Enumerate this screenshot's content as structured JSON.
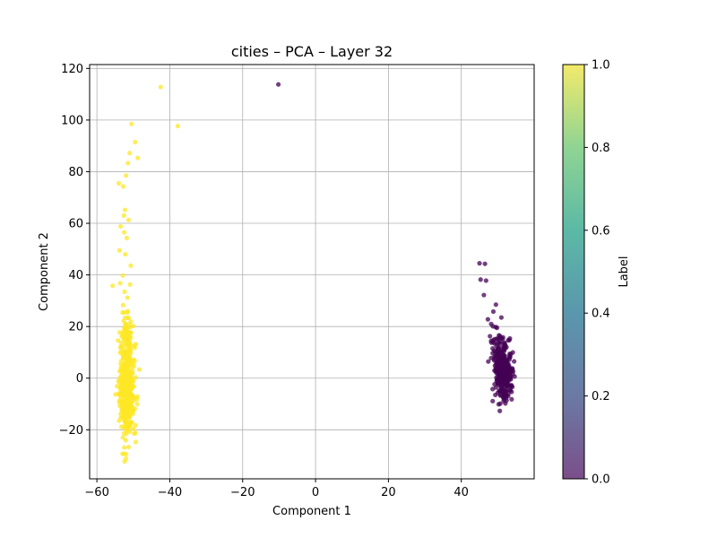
{
  "chart_data": {
    "type": "scatter",
    "title": "cities – PCA – Layer 32",
    "xlabel": "Component 1",
    "ylabel": "Component 2",
    "xlim": [
      -62,
      60
    ],
    "ylim": [
      -39,
      121.5
    ],
    "xticks": [
      -60,
      -40,
      -20,
      0,
      20,
      40
    ],
    "yticks": [
      -20,
      0,
      20,
      40,
      60,
      80,
      100,
      120
    ],
    "x_tick_labels": [
      "−60",
      "−40",
      "−20",
      "0",
      "20",
      "40"
    ],
    "y_tick_labels": [
      "−20",
      "0",
      "20",
      "40",
      "60",
      "80",
      "100",
      "120"
    ],
    "grid": true,
    "colorbar": {
      "label": "Label",
      "range": [
        0.0,
        1.0
      ],
      "ticks": [
        0.0,
        0.2,
        0.4,
        0.6,
        0.8,
        1.0
      ],
      "tick_labels": [
        "0.0",
        "0.2",
        "0.4",
        "0.6",
        "0.8",
        "1.0"
      ],
      "colormap": "viridis"
    },
    "colors": {
      "label_0": "#440154",
      "label_1": "#fde725"
    },
    "points": [
      {
        "x": -42.5,
        "y": 112.8,
        "label": 1
      },
      {
        "x": -37.8,
        "y": 97.7,
        "label": 1
      },
      {
        "x": -50.5,
        "y": 98.5,
        "label": 1
      },
      {
        "x": -49.5,
        "y": 91.5,
        "label": 1
      },
      {
        "x": -48.8,
        "y": 85.3,
        "label": 1
      },
      {
        "x": -51.0,
        "y": 87.2,
        "label": 1
      },
      {
        "x": -51.5,
        "y": 83.3,
        "label": 1
      },
      {
        "x": -52.0,
        "y": 78.5,
        "label": 1
      },
      {
        "x": -54.0,
        "y": 75.5,
        "label": 1
      },
      {
        "x": -52.8,
        "y": 74.3,
        "label": 1
      },
      {
        "x": -52.3,
        "y": 65.2,
        "label": 1
      },
      {
        "x": -52.6,
        "y": 63.0,
        "label": 1
      },
      {
        "x": -51.3,
        "y": 61.3,
        "label": 1
      },
      {
        "x": -53.5,
        "y": 58.8,
        "label": 1
      },
      {
        "x": -52.5,
        "y": 56.5,
        "label": 1
      },
      {
        "x": -51.8,
        "y": 54.3,
        "label": 1
      },
      {
        "x": -53.8,
        "y": 49.5,
        "label": 1
      },
      {
        "x": -52.2,
        "y": 48.0,
        "label": 1
      },
      {
        "x": -50.7,
        "y": 43.6,
        "label": 1
      },
      {
        "x": -52.9,
        "y": 39.8,
        "label": 1
      },
      {
        "x": -53.6,
        "y": 36.8,
        "label": 1
      },
      {
        "x": -55.7,
        "y": 35.8,
        "label": 1
      },
      {
        "x": -50.9,
        "y": 36.3,
        "label": 1
      },
      {
        "x": -52.4,
        "y": 33.5,
        "label": 1
      },
      {
        "x": -51.6,
        "y": 31.2,
        "label": 1
      },
      {
        "x": -52.8,
        "y": 28.3,
        "label": 1
      },
      {
        "x": -49.3,
        "y": 13.2,
        "label": 1
      },
      {
        "x": -54.2,
        "y": 14.6,
        "label": 1
      },
      {
        "x": -52.4,
        "y": -32.3,
        "label": 1
      },
      {
        "x": -52.0,
        "y": -29.4,
        "label": 1
      },
      {
        "x": -10.2,
        "y": 113.8,
        "label": 0
      },
      {
        "x": 45.0,
        "y": 44.5,
        "label": 0
      },
      {
        "x": 46.5,
        "y": 44.3,
        "label": 0
      },
      {
        "x": 45.3,
        "y": 38.2,
        "label": 0
      },
      {
        "x": 46.8,
        "y": 37.8,
        "label": 0
      },
      {
        "x": 46.2,
        "y": 32.2,
        "label": 0
      },
      {
        "x": 49.5,
        "y": 28.5,
        "label": 0
      },
      {
        "x": 48.8,
        "y": 25.8,
        "label": 0
      },
      {
        "x": 51.0,
        "y": 23.5,
        "label": 0
      },
      {
        "x": 47.3,
        "y": 22.8,
        "label": 0
      },
      {
        "x": 48.2,
        "y": 21.0,
        "label": 0
      },
      {
        "x": 49.8,
        "y": 19.5,
        "label": 0
      },
      {
        "x": 53.2,
        "y": 7.2,
        "label": 0
      },
      {
        "x": 54.5,
        "y": 6.5,
        "label": 0
      },
      {
        "x": 54.0,
        "y": 3.8,
        "label": 0
      }
    ],
    "clusters": [
      {
        "label": 1,
        "center_x": -51.8,
        "center_y": -5,
        "spread_x": 1.0,
        "spread_y": 8.5,
        "count": 430
      },
      {
        "label": 1,
        "center_x": -52.0,
        "center_y": 17,
        "spread_x": 0.9,
        "spread_y": 4.5,
        "count": 60
      },
      {
        "label": 0,
        "center_x": 51.5,
        "center_y": 2,
        "spread_x": 1.2,
        "spread_y": 5.2,
        "count": 300
      },
      {
        "label": 0,
        "center_x": 50.0,
        "center_y": 13,
        "spread_x": 1.1,
        "spread_y": 3.5,
        "count": 45
      }
    ]
  }
}
